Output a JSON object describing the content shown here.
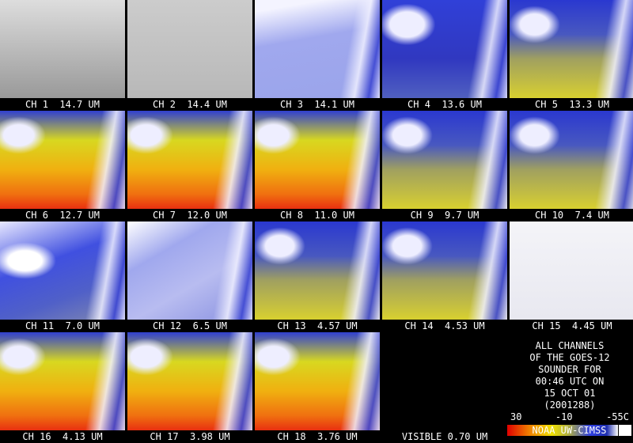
{
  "panels": [
    "CH 1  14.7 UM",
    "CH 2  14.4 UM",
    "CH 3  14.1 UM",
    "CH 4  13.6 UM",
    "CH 5  13.3 UM",
    "CH 6  12.7 UM",
    "CH 7  12.0 UM",
    "CH 8  11.0 UM",
    "CH 9  9.7 UM",
    "CH 10  7.4 UM",
    "CH 11  7.0 UM",
    "CH 12  6.5 UM",
    "CH 13  4.57 UM",
    "CH 14  4.53 UM",
    "CH 15  4.45 UM",
    "CH 16  4.13 UM",
    "CH 17  3.98 UM",
    "CH 18  3.76 UM",
    "VISIBLE 0.70 UM"
  ],
  "info": [
    "ALL CHANNELS",
    "OF THE GOES-12",
    "SOUNDER FOR",
    "00:46 UTC ON",
    "15 OCT 01",
    "(2001288)"
  ],
  "colorbar_labels": [
    "30",
    "-10",
    "-55C"
  ],
  "credit": "NOAA UW-CIMSS"
}
